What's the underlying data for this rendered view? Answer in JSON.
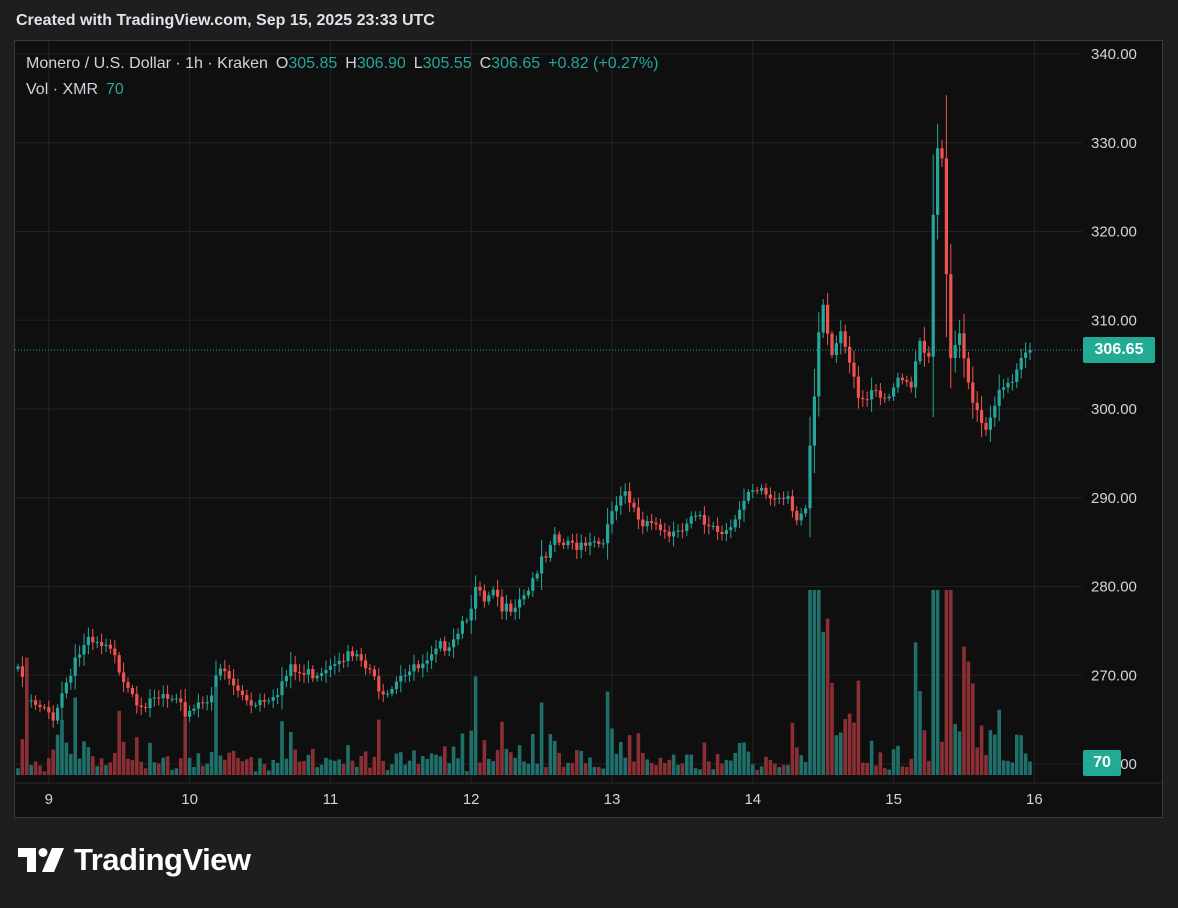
{
  "header": {
    "text": "Created with TradingView.com, Sep 15, 2025 23:33 UTC"
  },
  "legend": {
    "symbol": "Monero / U.S. Dollar · 1h · Kraken",
    "open_label": "O",
    "open": "305.85",
    "high_label": "H",
    "high": "306.90",
    "low_label": "L",
    "low": "305.55",
    "close_label": "C",
    "close": "306.65",
    "change": "+0.82 (+0.27%)"
  },
  "volume_legend": {
    "label": "Vol · XMR",
    "value": "70"
  },
  "last_price_badge": "306.65",
  "volume_badge": "70",
  "logo": {
    "text": "TradingView"
  },
  "colors": {
    "up": "#26a69a",
    "down": "#ef5350",
    "up_volume": "#1f6f6a",
    "down_volume": "#8a2f33",
    "grid": "#222222",
    "badge": "#22ab94"
  },
  "chart_data": {
    "type": "candlestick",
    "interval": "1h",
    "y_ticks": [
      "340.00",
      "330.00",
      "320.00",
      "310.00",
      "300.00",
      "290.00",
      "280.00",
      "270.00",
      "260.00"
    ],
    "ylim": [
      260,
      340
    ],
    "x_ticks": [
      "9",
      "10",
      "11",
      "12",
      "13",
      "14",
      "15",
      "16"
    ],
    "grid": true,
    "anchors": [
      [
        0,
        271
      ],
      [
        2,
        267
      ],
      [
        5,
        266
      ],
      [
        8,
        265.5
      ],
      [
        10,
        268
      ],
      [
        13,
        272
      ],
      [
        16,
        273.5
      ],
      [
        19,
        273
      ],
      [
        21,
        272.5
      ],
      [
        24,
        270
      ],
      [
        27,
        267.5
      ],
      [
        30,
        266.5
      ],
      [
        33,
        267.5
      ],
      [
        36,
        266.5
      ],
      [
        38,
        265.8
      ],
      [
        41,
        267
      ],
      [
        44,
        268
      ],
      [
        46,
        270.5
      ],
      [
        48,
        269.5
      ],
      [
        50,
        268
      ],
      [
        53,
        267
      ],
      [
        56,
        267.5
      ],
      [
        59,
        268.5
      ],
      [
        62,
        270.5
      ],
      [
        65,
        270
      ],
      [
        68,
        270.5
      ],
      [
        71,
        271.5
      ],
      [
        73,
        272.5
      ],
      [
        76,
        272
      ],
      [
        78,
        271.5
      ],
      [
        80,
        270
      ],
      [
        83,
        268.5
      ],
      [
        85,
        269
      ],
      [
        87,
        270.5
      ],
      [
        90,
        270.5
      ],
      [
        93,
        271
      ],
      [
        96,
        273
      ],
      [
        99,
        274.5
      ],
      [
        102,
        277
      ],
      [
        104,
        279.5
      ],
      [
        106,
        278
      ],
      [
        108,
        279
      ],
      [
        110,
        277
      ],
      [
        112,
        278
      ],
      [
        114,
        279
      ],
      [
        116,
        280
      ],
      [
        118,
        282
      ],
      [
        120,
        283
      ],
      [
        122,
        285
      ],
      [
        125,
        284.5
      ],
      [
        128,
        285
      ],
      [
        130,
        285.5
      ],
      [
        132,
        285
      ],
      [
        134,
        286.5
      ],
      [
        136,
        289
      ],
      [
        138,
        290
      ],
      [
        140,
        288.5
      ],
      [
        142,
        287
      ],
      [
        144,
        288
      ],
      [
        146,
        286.5
      ],
      [
        148,
        286
      ],
      [
        150,
        285.5
      ],
      [
        152,
        287
      ],
      [
        154,
        287.5
      ],
      [
        156,
        287
      ],
      [
        158,
        287.5
      ],
      [
        160,
        286
      ],
      [
        162,
        287.5
      ],
      [
        164,
        288.5
      ],
      [
        166,
        290
      ],
      [
        169,
        290.5
      ],
      [
        172,
        290
      ],
      [
        175,
        290.5
      ],
      [
        177,
        288
      ],
      [
        179,
        288.5
      ],
      [
        180,
        295
      ],
      [
        181,
        301
      ],
      [
        182,
        308
      ],
      [
        183,
        311
      ],
      [
        185,
        306
      ],
      [
        187,
        309
      ],
      [
        189,
        306
      ],
      [
        191,
        302
      ],
      [
        193,
        301
      ],
      [
        195,
        301.5
      ],
      [
        197,
        300.5
      ],
      [
        199,
        302
      ],
      [
        201,
        304
      ],
      [
        203,
        303
      ],
      [
        205,
        308
      ],
      [
        207,
        306
      ],
      [
        208,
        321
      ],
      [
        209,
        329
      ],
      [
        210,
        328
      ],
      [
        211,
        315
      ],
      [
        212,
        305
      ],
      [
        214,
        308
      ],
      [
        216,
        303
      ],
      [
        218,
        300
      ],
      [
        220,
        298
      ],
      [
        222,
        301
      ],
      [
        224,
        302
      ],
      [
        226,
        303
      ],
      [
        228,
        305
      ],
      [
        229,
        306
      ],
      [
        230,
        306.65
      ]
    ],
    "volume_ticks": [
      "70"
    ]
  }
}
